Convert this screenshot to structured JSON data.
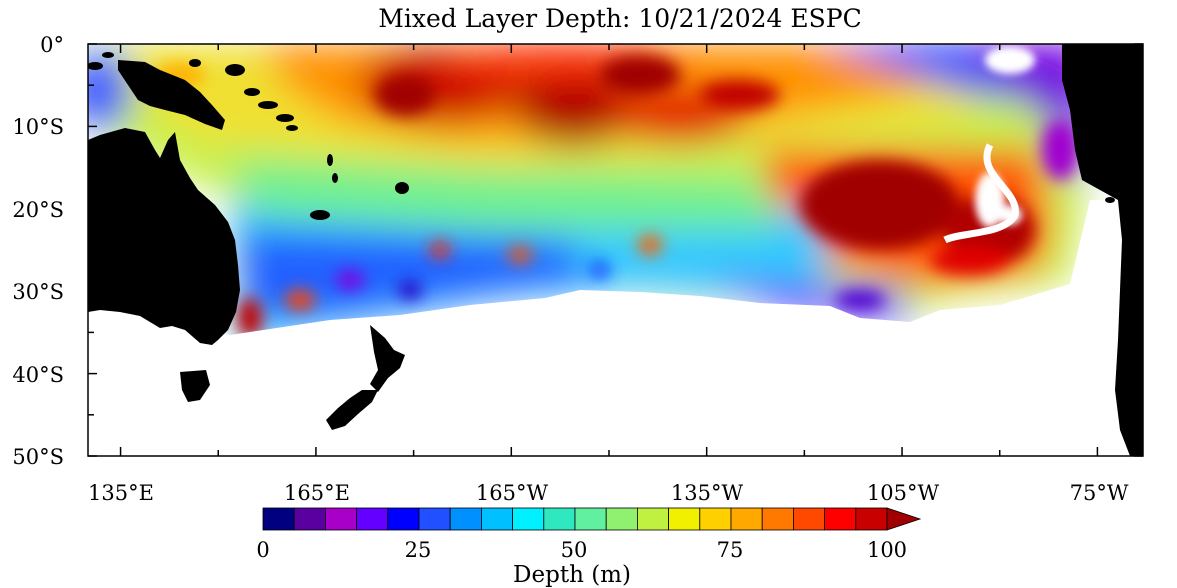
{
  "title": "Mixed Layer Depth: 10/21/2024 ESPC",
  "map": {
    "y_axis_labels": [
      "0°",
      "10°S",
      "20°S",
      "30°S",
      "40°S",
      "50°S"
    ],
    "x_axis_labels": [
      "135°E",
      "165°E",
      "165°W",
      "135°W",
      "105°W",
      "75°W"
    ],
    "lat_range": [
      0,
      -50
    ],
    "lon_range": [
      130,
      292
    ],
    "land_color": "#000000",
    "nodata_color": "#ffffff",
    "field_features": [
      {
        "feature": "equatorial-band",
        "depth_m": 65
      },
      {
        "feature": "central-maximum",
        "depth_m": 100
      },
      {
        "feature": "southeast-pacific-maximum",
        "depth_m": 100
      },
      {
        "feature": "eastern-shallow-coastal",
        "depth_m": 15
      },
      {
        "feature": "southern-variable-band",
        "depth_m": 30
      }
    ]
  },
  "colorbar": {
    "title": "Depth (m)",
    "tick_labels": [
      "0",
      "25",
      "50",
      "75",
      "100"
    ],
    "min": 0,
    "max": 100,
    "colors": [
      "#000080",
      "#5a00a0",
      "#a800c8",
      "#6400ff",
      "#0000ff",
      "#2050ff",
      "#0090ff",
      "#00c0ff",
      "#00f0ff",
      "#30e8c0",
      "#60f0a0",
      "#90f070",
      "#c0f040",
      "#f0f000",
      "#ffd000",
      "#ffa800",
      "#ff7800",
      "#ff4800",
      "#ff0000",
      "#c80000",
      "#a00000"
    ]
  }
}
